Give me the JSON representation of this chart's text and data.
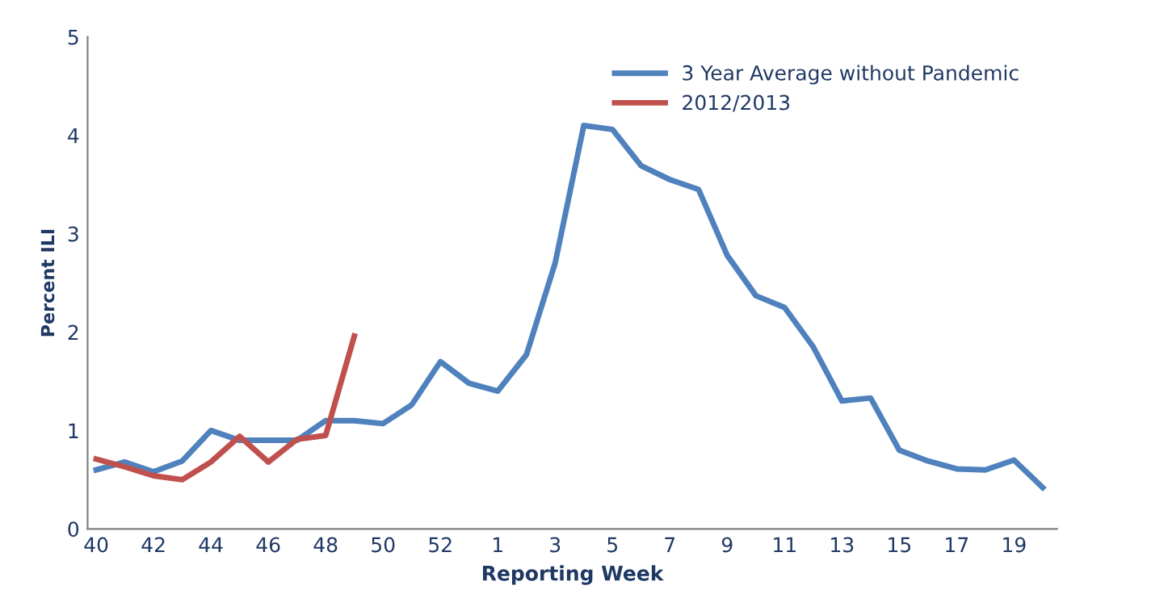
{
  "chart_data": {
    "type": "line",
    "xlabel": "Reporting Week",
    "ylabel": "Percent ILI",
    "categories": [
      "40",
      null,
      "42",
      null,
      "44",
      null,
      "46",
      null,
      "48",
      null,
      "50",
      null,
      "52",
      null,
      "1",
      null,
      "3",
      null,
      "5",
      null,
      "7",
      null,
      "9",
      null,
      "11",
      null,
      "13",
      null,
      "15",
      null,
      "17",
      null,
      "19",
      null
    ],
    "series": [
      {
        "name": "3 Year Average without Pandemic",
        "color": "#4f81bd",
        "values": [
          0.6,
          0.68,
          0.58,
          0.69,
          1.0,
          0.9,
          0.9,
          0.9,
          1.1,
          1.1,
          1.07,
          1.26,
          1.7,
          1.48,
          1.4,
          1.77,
          2.7,
          4.1,
          4.06,
          3.69,
          3.55,
          3.45,
          2.78,
          2.37,
          2.25,
          1.85,
          1.3,
          1.33,
          0.8,
          0.69,
          0.61,
          0.6,
          0.7,
          0.42
        ]
      },
      {
        "name": "2012/2013",
        "color": "#c0504d",
        "values": [
          0.71,
          0.63,
          0.54,
          0.5,
          0.68,
          0.94,
          0.68,
          0.91,
          0.95,
          1.96,
          null,
          null,
          null,
          null,
          null,
          null,
          null,
          null,
          null,
          null,
          null,
          null,
          null,
          null,
          null,
          null,
          null,
          null,
          null,
          null,
          null,
          null,
          null,
          null
        ]
      }
    ],
    "ylim": [
      0,
      5
    ],
    "yticks": [
      0,
      1,
      2,
      3,
      4,
      5
    ],
    "grid": false,
    "legend": "top right",
    "marker": "none",
    "line_style": "solid"
  }
}
